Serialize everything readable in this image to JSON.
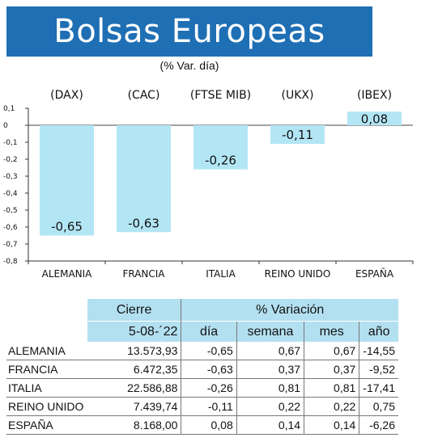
{
  "title": "Bolsas Europeas",
  "subtitle": "(% Var. día)",
  "chart_data": {
    "type": "bar",
    "categories": [
      "ALEMANIA",
      "FRANCIA",
      "ITALIA",
      "REINO UNIDO",
      "ESPAÑA"
    ],
    "indices": [
      "(DAX)",
      "(CAC)",
      "(FTSE MIB)",
      "(UKX)",
      "(IBEX)"
    ],
    "values": [
      -0.65,
      -0.63,
      -0.26,
      -0.11,
      0.08
    ],
    "value_labels": [
      "-0,65",
      "-0,63",
      "-0,26",
      "-0,11",
      "0,08"
    ],
    "yticks": [
      "0,1",
      "0",
      "-0,1",
      "-0,2",
      "-0,3",
      "-0,4",
      "-0,5",
      "-0,6",
      "-0,7",
      "-0,8"
    ],
    "ylim": [
      -0.8,
      0.1
    ],
    "bar_color": "#b3e6f5"
  },
  "table": {
    "group_headers": [
      "Cierre",
      "% Variación"
    ],
    "sub_headers": [
      "5-08-´22",
      "día",
      "semana",
      "mes",
      "año"
    ],
    "rows": [
      {
        "country": "ALEMANIA",
        "cierre": "13.573,93",
        "dia": "-0,65",
        "semana": "0,67",
        "mes": "0,67",
        "ano": "-14,55"
      },
      {
        "country": "FRANCIA",
        "cierre": "6.472,35",
        "dia": "-0,63",
        "semana": "0,37",
        "mes": "0,37",
        "ano": "-9,52"
      },
      {
        "country": "ITALIA",
        "cierre": "22.586,88",
        "dia": "-0,26",
        "semana": "0,81",
        "mes": "0,81",
        "ano": "-17,41"
      },
      {
        "country": "REINO UNIDO",
        "cierre": "7.439,74",
        "dia": "-0,11",
        "semana": "0,22",
        "mes": "0,22",
        "ano": "0,75"
      },
      {
        "country": "ESPAÑA",
        "cierre": "8.168,00",
        "dia": "0,08",
        "semana": "0,14",
        "mes": "0,14",
        "ano": "-6,26"
      }
    ]
  }
}
